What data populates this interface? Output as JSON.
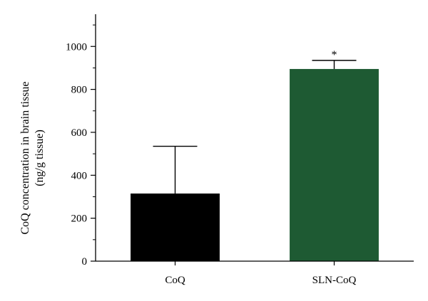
{
  "chart_data": {
    "type": "bar",
    "categories": [
      "CoQ",
      "SLN-CoQ"
    ],
    "values": [
      315,
      895
    ],
    "errors": [
      220,
      40
    ],
    "colors": [
      "#000000",
      "#1e5a33"
    ],
    "error_colors": [
      "#000000",
      "#1e5a33"
    ],
    "annotations": [
      "",
      "*"
    ],
    "ylabel_lines": [
      "CoQ concentration in brain tissue",
      "(ng/g tissue)"
    ],
    "xlabel": "",
    "ylim": [
      0,
      1150
    ],
    "yticks": [
      0,
      200,
      400,
      600,
      800,
      1000
    ],
    "yticks_minor_step": 100,
    "grid": false
  }
}
